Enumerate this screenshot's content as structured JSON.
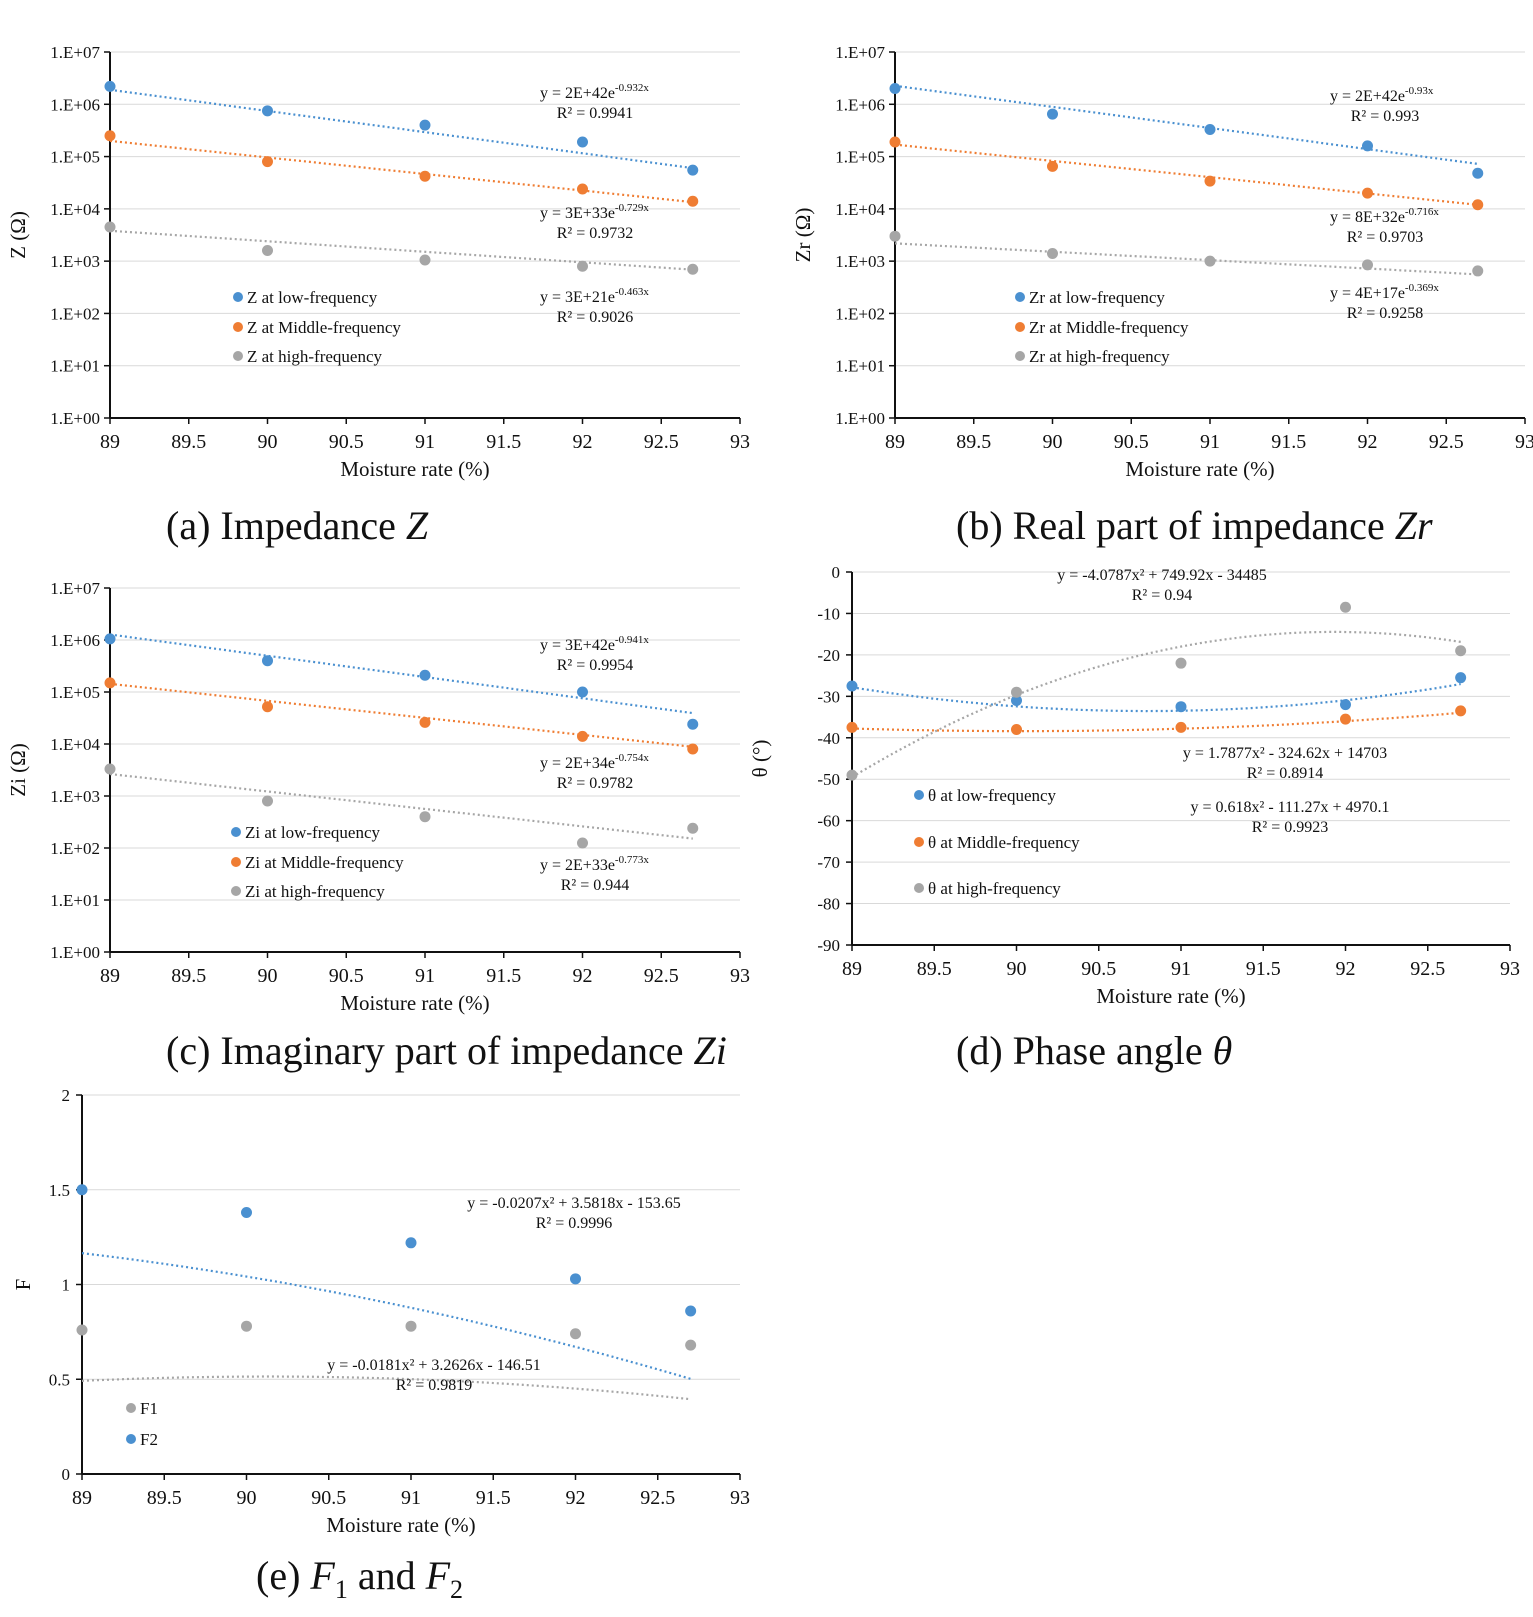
{
  "colors": {
    "blue": "#4a90d0",
    "orange": "#ef7d33",
    "gray": "#a6a6a6",
    "grid": "#d9d9d9",
    "axis": "#111111"
  },
  "captions": {
    "a": {
      "prefix": "(a) Impedance ",
      "var": "Z"
    },
    "b": {
      "prefix": "(b) Real part of impedance ",
      "var": "Zr"
    },
    "c": {
      "prefix": "(c) Imaginary part of impedance ",
      "var": "Zi"
    },
    "d": {
      "prefix": "(d) Phase angle ",
      "var": "θ"
    },
    "e": {
      "prefix": "(e) ",
      "var1": "F",
      "sub1": "1",
      "mid": " and ",
      "var2": "F",
      "sub2": "2"
    }
  },
  "chart_data": [
    {
      "id": "a",
      "type": "scatter",
      "scale": "log",
      "xlabel": "Moisture rate (%)",
      "ylabel": "Z (Ω)",
      "x_ticks": [
        "89",
        "89.5",
        "90",
        "90.5",
        "91",
        "91.5",
        "92",
        "92.5",
        "93"
      ],
      "y_ticks": [
        "1.E+00",
        "1.E+01",
        "1.E+02",
        "1.E+03",
        "1.E+04",
        "1.E+05",
        "1.E+06",
        "1.E+07"
      ],
      "xlim": [
        89,
        93
      ],
      "ylim": [
        0,
        7
      ],
      "legend": "left",
      "series": [
        {
          "name": "Z at low-frequency",
          "color": "blue",
          "x": [
            89,
            90,
            91,
            92,
            92.7
          ],
          "y": [
            2200000,
            750000,
            400000,
            190000,
            55000
          ],
          "trend": {
            "kind": "exp",
            "a": 2e+42,
            "b": -0.932
          },
          "equation": "y = 2E+42e",
          "exponent": "-0.932x",
          "r2": "R² = 0.9941"
        },
        {
          "name": "Z at Middle-frequency",
          "color": "orange",
          "x": [
            89,
            90,
            91,
            92,
            92.7
          ],
          "y": [
            250000,
            80000,
            42000,
            24000,
            14000
          ],
          "trend": {
            "kind": "exp",
            "a": 3e+33,
            "b": -0.729
          },
          "equation": "y = 3E+33e",
          "exponent": "-0.729x",
          "r2": "R² = 0.9732"
        },
        {
          "name": "Z at high-frequency",
          "color": "gray",
          "x": [
            89,
            90,
            91,
            92,
            92.7
          ],
          "y": [
            4500,
            1600,
            1050,
            800,
            700
          ],
          "trend": {
            "kind": "exp",
            "a": 3e+21,
            "b": -0.463
          },
          "equation": "y = 3E+21e",
          "exponent": "-0.463x",
          "r2": "R² = 0.9026"
        }
      ]
    },
    {
      "id": "b",
      "type": "scatter",
      "scale": "log",
      "xlabel": "Moisture rate (%)",
      "ylabel": "Zr (Ω)",
      "x_ticks": [
        "89",
        "89.5",
        "90",
        "90.5",
        "91",
        "91.5",
        "92",
        "92.5",
        "93"
      ],
      "y_ticks": [
        "1.E+00",
        "1.E+01",
        "1.E+02",
        "1.E+03",
        "1.E+04",
        "1.E+05",
        "1.E+06",
        "1.E+07"
      ],
      "xlim": [
        89,
        93
      ],
      "ylim": [
        0,
        7
      ],
      "legend": "left",
      "series": [
        {
          "name": "Zr at low-frequency",
          "color": "blue",
          "x": [
            89,
            90,
            91,
            92,
            92.7
          ],
          "y": [
            2000000,
            650000,
            330000,
            160000,
            48000
          ],
          "trend": {
            "kind": "exp",
            "a": 2e+42,
            "b": -0.93
          },
          "equation": "y = 2E+42e",
          "exponent": "-0.93x",
          "r2": "R² = 0.993"
        },
        {
          "name": "Zr at Middle-frequency",
          "color": "orange",
          "x": [
            89,
            90,
            91,
            92,
            92.7
          ],
          "y": [
            190000,
            65000,
            34000,
            20000,
            12000
          ],
          "trend": {
            "kind": "exp",
            "a": 8e+32,
            "b": -0.716
          },
          "equation": "y = 8E+32e",
          "exponent": "-0.716x",
          "r2": "R² = 0.9703"
        },
        {
          "name": "Zr at high-frequency",
          "color": "gray",
          "x": [
            89,
            90,
            91,
            92,
            92.7
          ],
          "y": [
            3000,
            1400,
            1000,
            850,
            650
          ],
          "trend": {
            "kind": "exp",
            "a": 4e+17,
            "b": -0.369
          },
          "equation": "y = 4E+17e",
          "exponent": "-0.369x",
          "r2": "R² = 0.9258"
        }
      ]
    },
    {
      "id": "c",
      "type": "scatter",
      "scale": "log",
      "xlabel": "Moisture rate (%)",
      "ylabel": "Zi (Ω)",
      "x_ticks": [
        "89",
        "89.5",
        "90",
        "90.5",
        "91",
        "91.5",
        "92",
        "92.5",
        "93"
      ],
      "y_ticks": [
        "1.E+00",
        "1.E+01",
        "1.E+02",
        "1.E+03",
        "1.E+04",
        "1.E+05",
        "1.E+06",
        "1.E+07"
      ],
      "xlim": [
        89,
        93
      ],
      "ylim": [
        0,
        7
      ],
      "legend": "left",
      "series": [
        {
          "name": "Zi at low-frequency",
          "color": "blue",
          "x": [
            89,
            90,
            91,
            92,
            92.7
          ],
          "y": [
            1050000,
            400000,
            210000,
            100000,
            24000
          ],
          "trend": {
            "kind": "exp",
            "a": 3e+42,
            "b": -0.941
          },
          "equation": "y = 3E+42e",
          "exponent": "-0.941x",
          "r2": "R² = 0.9954"
        },
        {
          "name": "Zi at Middle-frequency",
          "color": "orange",
          "x": [
            89,
            90,
            91,
            92,
            92.7
          ],
          "y": [
            150000,
            52000,
            26000,
            14000,
            8000
          ],
          "trend": {
            "kind": "exp",
            "a": 2e+34,
            "b": -0.754
          },
          "equation": "y = 2E+34e",
          "exponent": "-0.754x",
          "r2": "R² = 0.9782"
        },
        {
          "name": "Zi at high-frequency",
          "color": "gray",
          "x": [
            89,
            90,
            91,
            92,
            92.7
          ],
          "y": [
            3300,
            800,
            400,
            125,
            240
          ],
          "trend": {
            "kind": "exp",
            "a": 2e+33,
            "b": -0.773
          },
          "equation": "y = 2E+33e",
          "exponent": "-0.773x",
          "r2": "R² = 0.944"
        }
      ]
    },
    {
      "id": "d",
      "type": "scatter",
      "scale": "linear",
      "xlabel": "Moisture rate (%)",
      "ylabel": "θ (°)",
      "x_ticks": [
        "89",
        "89.5",
        "90",
        "90.5",
        "91",
        "91.5",
        "92",
        "92.5",
        "93"
      ],
      "y_ticks": [
        "0",
        "-10",
        "-20",
        "-30",
        "-40",
        "-50",
        "-60",
        "-70",
        "-80",
        "-90"
      ],
      "xlim": [
        89,
        93
      ],
      "ylim": [
        -90,
        0
      ],
      "legend": "left",
      "series": [
        {
          "name": "θ at low-frequency",
          "color": "blue",
          "x": [
            89,
            90,
            91,
            92,
            92.7
          ],
          "y": [
            -27.5,
            -31,
            -32.5,
            -32,
            -25.5
          ],
          "trend": {
            "kind": "poly",
            "c": [
              14703,
              -324.62,
              1.7877
            ]
          },
          "equation": "y = 1.7877x² - 324.62x + 14703",
          "r2": "R² = 0.8914"
        },
        {
          "name": "θ at Middle-frequency",
          "color": "orange",
          "x": [
            89,
            90,
            91,
            92,
            92.7
          ],
          "y": [
            -37.5,
            -38,
            -37.5,
            -35.5,
            -33.5
          ],
          "trend": {
            "kind": "poly",
            "c": [
              4970.1,
              -111.27,
              0.618
            ]
          },
          "equation": "y = 0.618x² - 111.27x + 4970.1",
          "r2": "R² = 0.9923"
        },
        {
          "name": "θ at high-frequency",
          "color": "gray",
          "x": [
            89,
            90,
            91,
            92,
            92.7
          ],
          "y": [
            -49,
            -29,
            -22,
            -8.5,
            -19
          ],
          "trend": {
            "kind": "poly",
            "c": [
              -34485,
              749.92,
              -4.0787
            ]
          },
          "equation": "y = -4.0787x² + 749.92x - 34485",
          "r2": "R² = 0.94"
        }
      ]
    },
    {
      "id": "e",
      "type": "scatter",
      "scale": "linear",
      "xlabel": "Moisture rate (%)",
      "ylabel": "F",
      "x_ticks": [
        "89",
        "89.5",
        "90",
        "90.5",
        "91",
        "91.5",
        "92",
        "92.5",
        "93"
      ],
      "y_ticks": [
        "0",
        "0.5",
        "1",
        "1.5",
        "2"
      ],
      "xlim": [
        89,
        93
      ],
      "ylim": [
        0,
        2
      ],
      "legend": "left",
      "series": [
        {
          "name": "F1",
          "color": "gray",
          "x": [
            89,
            90,
            91,
            92,
            92.7
          ],
          "y": [
            0.76,
            0.78,
            0.78,
            0.74,
            0.68
          ],
          "trend": {
            "kind": "poly",
            "c": [
              -146.51,
              3.2626,
              -0.0181
            ]
          },
          "equation": "y = -0.0181x² + 3.2626x - 146.51",
          "r2": "R² = 0.9819"
        },
        {
          "name": "F2",
          "color": "blue",
          "x": [
            89,
            90,
            91,
            92,
            92.7
          ],
          "y": [
            1.5,
            1.38,
            1.22,
            1.03,
            0.86
          ],
          "trend": {
            "kind": "poly",
            "c": [
              -153.65,
              3.5818,
              -0.0207
            ]
          },
          "equation": "y = -0.0207x² + 3.5818x - 153.65",
          "r2": "R² = 0.9996"
        }
      ]
    }
  ]
}
